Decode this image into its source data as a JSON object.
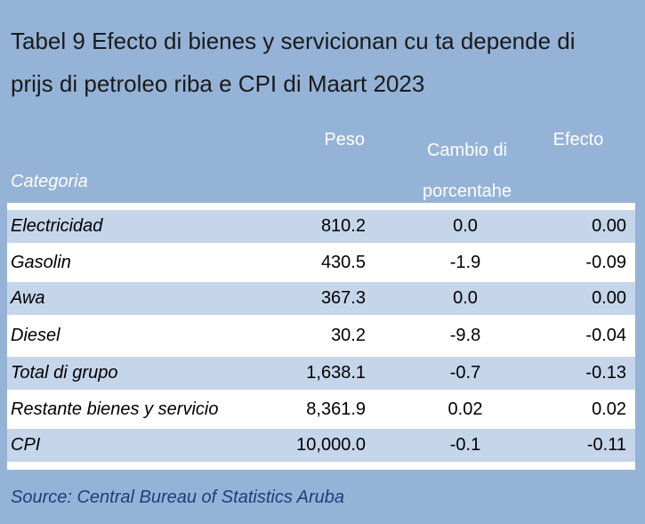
{
  "title_lines": [
    "Tabel 9 Efecto di bienes y servicionan cu ta depende di",
    "prijs di petroleo riba e CPI di Maart 2023"
  ],
  "headers": {
    "categoria": "Categoria",
    "peso": "Peso",
    "cambio_line1": "Cambio di",
    "cambio_line2": "porcentahe",
    "efecto": "Efecto"
  },
  "rows": [
    {
      "categoria": "Electricidad",
      "peso": "810.2",
      "cambio": "0.0",
      "efecto": "0.00"
    },
    {
      "categoria": "Gasolin",
      "peso": "430.5",
      "cambio": "-1.9",
      "efecto": "-0.09"
    },
    {
      "categoria": "Awa",
      "peso": "367.3",
      "cambio": "0.0",
      "efecto": "0.00"
    },
    {
      "categoria": "Diesel",
      "peso": "30.2",
      "cambio": "-9.8",
      "efecto": "-0.04"
    },
    {
      "categoria": "Total di grupo",
      "peso": "1,638.1",
      "cambio": "-0.7",
      "efecto": "-0.13"
    },
    {
      "categoria": "Restante bienes y servicio",
      "peso": "8,361.9",
      "cambio": "0.02",
      "efecto": "0.02"
    },
    {
      "categoria": "CPI",
      "peso": "10,000.0",
      "cambio": "-0.1",
      "efecto": "-0.11"
    }
  ],
  "source": "Source: Central Bureau of Statistics Aruba",
  "colors": {
    "panel_background": "#95b3d7",
    "band_row": "#c5d5ea",
    "header_text": "#ffffff",
    "source_text": "#1f3d7a"
  }
}
